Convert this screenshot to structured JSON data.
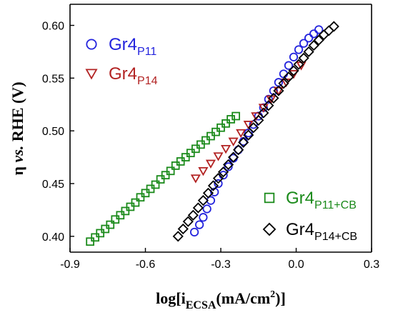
{
  "chart_data": {
    "type": "scatter",
    "xlabel": {
      "main": "log[i",
      "sub": "ECSA",
      "unit": "(mA/cm",
      "sup": "2",
      "close": ")]"
    },
    "ylabel": {
      "eta": "η",
      "vs": "vs.",
      "rest": "RHE (V)"
    },
    "xlim": [
      -0.9,
      0.3
    ],
    "ylim": [
      0.385,
      0.62
    ],
    "xticks": [
      "-0.9",
      "-0.6",
      "-0.3",
      "0.0",
      "0.3"
    ],
    "yticks": [
      "0.40",
      "0.45",
      "0.50",
      "0.55",
      "0.60"
    ],
    "legend_placement": "split: top-left and bottom-right",
    "series": [
      {
        "name": "Gr4",
        "sub": "P11",
        "marker": "circle",
        "color": "#2222dd",
        "x": [
          -0.405,
          -0.385,
          -0.37,
          -0.355,
          -0.34,
          -0.325,
          -0.31,
          -0.29,
          -0.27,
          -0.25,
          -0.23,
          -0.21,
          -0.19,
          -0.17,
          -0.15,
          -0.13,
          -0.11,
          -0.09,
          -0.07,
          -0.05,
          -0.03,
          -0.01,
          0.01,
          0.03,
          0.05,
          0.07,
          0.09
        ],
        "y": [
          0.404,
          0.411,
          0.418,
          0.426,
          0.434,
          0.442,
          0.45,
          0.458,
          0.466,
          0.474,
          0.482,
          0.49,
          0.498,
          0.506,
          0.514,
          0.522,
          0.53,
          0.538,
          0.546,
          0.554,
          0.562,
          0.57,
          0.577,
          0.583,
          0.588,
          0.592,
          0.596
        ]
      },
      {
        "name": "Gr4",
        "sub": "P14",
        "marker": "triangle-down",
        "color": "#b22222",
        "x": [
          -0.4,
          -0.37,
          -0.34,
          -0.31,
          -0.28,
          -0.25,
          -0.22,
          -0.19,
          -0.16,
          -0.13,
          -0.1,
          -0.07,
          -0.04,
          -0.01,
          0.02
        ],
        "y": [
          0.455,
          0.462,
          0.469,
          0.476,
          0.483,
          0.49,
          0.498,
          0.506,
          0.514,
          0.522,
          0.53,
          0.538,
          0.546,
          0.554,
          0.562
        ]
      },
      {
        "name": "Gr4",
        "sub": "P11+CB",
        "marker": "square",
        "color": "#1a8a1a",
        "x": [
          -0.82,
          -0.8,
          -0.78,
          -0.76,
          -0.74,
          -0.72,
          -0.7,
          -0.68,
          -0.66,
          -0.64,
          -0.62,
          -0.6,
          -0.58,
          -0.56,
          -0.54,
          -0.52,
          -0.5,
          -0.48,
          -0.46,
          -0.44,
          -0.42,
          -0.4,
          -0.38,
          -0.36,
          -0.34,
          -0.32,
          -0.3,
          -0.28,
          -0.26,
          -0.24
        ],
        "y": [
          0.395,
          0.399,
          0.403,
          0.407,
          0.411,
          0.416,
          0.42,
          0.424,
          0.428,
          0.432,
          0.437,
          0.441,
          0.445,
          0.449,
          0.454,
          0.458,
          0.462,
          0.467,
          0.471,
          0.475,
          0.479,
          0.483,
          0.487,
          0.491,
          0.495,
          0.499,
          0.503,
          0.507,
          0.511,
          0.514
        ]
      },
      {
        "name": "Gr4",
        "sub": "P14+CB",
        "marker": "diamond",
        "color": "#000000",
        "x": [
          -0.47,
          -0.45,
          -0.43,
          -0.41,
          -0.39,
          -0.37,
          -0.35,
          -0.33,
          -0.31,
          -0.29,
          -0.27,
          -0.25,
          -0.23,
          -0.21,
          -0.19,
          -0.17,
          -0.15,
          -0.13,
          -0.11,
          -0.09,
          -0.07,
          -0.05,
          -0.03,
          -0.01,
          0.01,
          0.03,
          0.05,
          0.07,
          0.09,
          0.11,
          0.13,
          0.15
        ],
        "y": [
          0.4,
          0.407,
          0.414,
          0.42,
          0.427,
          0.434,
          0.441,
          0.448,
          0.455,
          0.461,
          0.468,
          0.475,
          0.482,
          0.489,
          0.496,
          0.503,
          0.51,
          0.517,
          0.524,
          0.531,
          0.538,
          0.545,
          0.551,
          0.557,
          0.563,
          0.569,
          0.575,
          0.581,
          0.586,
          0.591,
          0.595,
          0.599
        ]
      }
    ]
  }
}
